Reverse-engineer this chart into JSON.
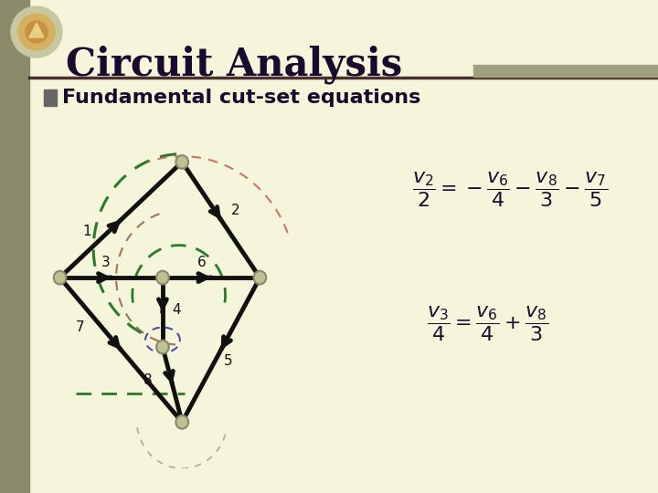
{
  "bg_color": "#f5f5dc",
  "left_bar_color": "#8B8B6B",
  "title": "Circuit Analysis",
  "title_color": "#1a0a2e",
  "subtitle": "Fundamental cut-set equations",
  "subtitle_color": "#1a0a2e",
  "bullet_color": "#666666",
  "node_color": "#c0c090",
  "node_edge_color": "#888870",
  "edge_color": "#111111",
  "dashed_green": "#2a7a2a",
  "dashed_brown": "#8B6040",
  "dashed_blue": "#3030a0",
  "dashed_light": "#909090",
  "rule_color": "#4a3030",
  "accent_color": "#a0a080"
}
